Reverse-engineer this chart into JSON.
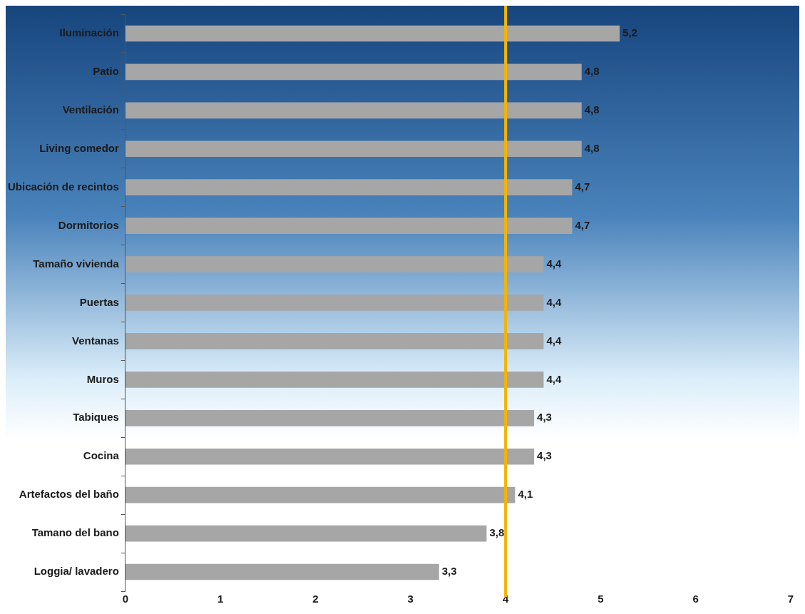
{
  "chart_data": {
    "type": "bar",
    "orientation": "horizontal",
    "categories": [
      "Iluminación",
      "Patio",
      "Ventilación",
      "Living comedor",
      "Ubicación de recintos",
      "Dormitorios",
      "Tamaño vivienda",
      "Puertas",
      "Ventanas",
      "Muros",
      "Tabiques",
      "Cocina",
      "Artefactos del baño",
      "Tamano del bano",
      "Loggia/ lavadero"
    ],
    "values": [
      5.2,
      4.8,
      4.8,
      4.8,
      4.7,
      4.7,
      4.4,
      4.4,
      4.4,
      4.4,
      4.3,
      4.3,
      4.1,
      3.8,
      3.3
    ],
    "value_labels": [
      "5,2",
      "4,8",
      "4,8",
      "4,8",
      "4,7",
      "4,7",
      "4,4",
      "4,4",
      "4,4",
      "4,4",
      "4,3",
      "4,3",
      "4,1",
      "3,8",
      "3,3"
    ],
    "color": "#a6a6a6",
    "xlim": [
      0,
      7
    ],
    "xticks": [
      0,
      1,
      2,
      3,
      4,
      5,
      6,
      7
    ],
    "ref_lines": [
      {
        "axis": "x",
        "value": 4,
        "color": "#f5b400"
      }
    ],
    "grid": false,
    "legend": false
  }
}
